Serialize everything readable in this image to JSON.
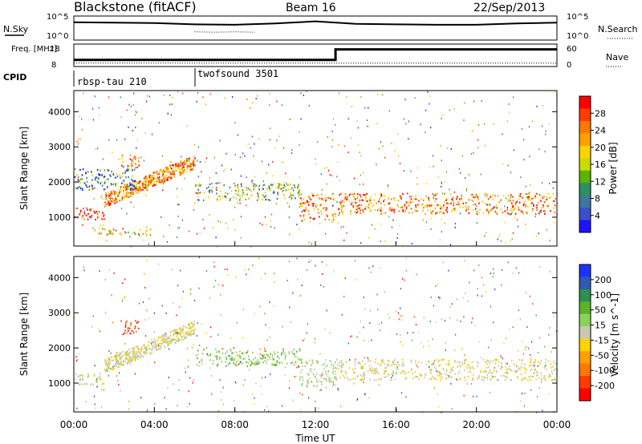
{
  "header": {
    "title": "Blackstone (fitACF)",
    "beam": "Beam 16",
    "date": "22/Sep/2013"
  },
  "chart_data": [
    {
      "type": "line",
      "panel": "noise",
      "ylabel_left": "N.Sky",
      "ylabel_right": "N.Search",
      "yticks_left": [
        "10^5",
        "10^0"
      ],
      "yticks_right": [
        "10^5",
        "10^0"
      ],
      "series": [
        {
          "name": "N.Sky",
          "x_hours": [
            0,
            2,
            4,
            6,
            8,
            10,
            12,
            14,
            16,
            18,
            20,
            22,
            24
          ],
          "values_log": [
            3.9,
            3.8,
            3.7,
            3.4,
            3.3,
            3.6,
            4.1,
            3.5,
            3.4,
            3.3,
            3.3,
            3.6,
            3.8
          ]
        },
        {
          "name": "N.Search",
          "x_hours": [
            6,
            7,
            8,
            9
          ],
          "values_log": [
            1.6,
            1.5,
            1.6,
            1.5
          ]
        }
      ]
    },
    {
      "type": "line",
      "panel": "frequency",
      "ylabel_left": "Freq. [MHz]",
      "ylabel_right": "Nave",
      "yticks_left": [
        "18",
        "8"
      ],
      "yticks_right": [
        "60",
        "0"
      ],
      "series": [
        {
          "name": "Freq",
          "x_hours": [
            0,
            13,
            13,
            24
          ],
          "values": [
            11,
            11,
            16.5,
            16.5
          ]
        },
        {
          "name": "Nave",
          "x_hours": [
            0,
            24
          ],
          "values": [
            8,
            8
          ]
        }
      ]
    },
    {
      "type": "table",
      "panel": "cpid",
      "label": "CPID",
      "segments": [
        {
          "name": "rbsp-tau 210",
          "start_hour": 0
        },
        {
          "name": "twofsound 3501",
          "start_hour": 6
        }
      ]
    },
    {
      "type": "heatmap",
      "panel": "power",
      "ylabel": "Slant Range [km]",
      "yticks": [
        1000,
        2000,
        3000,
        4000
      ],
      "ylim": [
        180,
        4600
      ],
      "colorbar_label": "Power [dB]",
      "colorbar_ticks": [
        28,
        24,
        20,
        16,
        12,
        8,
        4
      ],
      "colorbar_colors": [
        "#ff0000",
        "#ff3c00",
        "#ff7800",
        "#ffa000",
        "#ffd200",
        "#c8dc00",
        "#5ab400",
        "#2e9060",
        "#3c78a0",
        "#3c50c8",
        "#1e14ff"
      ],
      "bands": [
        {
          "start": 0.0,
          "end": 1.5,
          "range_low": 950,
          "range_high": 1300,
          "level": 28
        },
        {
          "start": 1.5,
          "end": 6.0,
          "range_low": 1300,
          "range_high": 2700,
          "level": 22
        },
        {
          "start": 0.0,
          "end": 3.0,
          "range_low": 1800,
          "range_high": 2400,
          "level": 10
        },
        {
          "start": 2.3,
          "end": 3.2,
          "range_low": 2400,
          "range_high": 2800,
          "level": 22
        },
        {
          "start": 1.0,
          "end": 3.8,
          "range_low": 500,
          "range_high": 700,
          "level": 18
        },
        {
          "start": 6.0,
          "end": 11.2,
          "range_low": 1500,
          "range_high": 2000,
          "level": 14
        },
        {
          "start": 11.2,
          "end": 13.0,
          "range_low": 900,
          "range_high": 1700,
          "level": 22
        },
        {
          "start": 13.0,
          "end": 24.0,
          "range_low": 1100,
          "range_high": 1700,
          "level": 22
        }
      ]
    },
    {
      "type": "heatmap",
      "panel": "velocity",
      "ylabel": "Slant Range [km]",
      "yticks": [
        1000,
        2000,
        3000,
        4000
      ],
      "ylim": [
        180,
        4600
      ],
      "colorbar_label": "Velocity [m s^-1]",
      "colorbar_ticks": [
        200,
        100,
        50,
        15,
        -15,
        -50,
        -100,
        -200
      ],
      "colorbar_colors": [
        "#1e32ff",
        "#2e5ab4",
        "#2e9050",
        "#5ab428",
        "#8cd25a",
        "#c8c8b4",
        "#ffd200",
        "#ffa000",
        "#ff7800",
        "#ff3c00",
        "#ff0000"
      ],
      "bands": [
        {
          "start": 0.0,
          "end": 1.5,
          "range_low": 950,
          "range_high": 1300,
          "level": -5
        },
        {
          "start": 1.5,
          "end": 6.0,
          "range_low": 1300,
          "range_high": 2700,
          "level": -5
        },
        {
          "start": 2.3,
          "end": 3.2,
          "range_low": 2400,
          "range_high": 2800,
          "level": -150
        },
        {
          "start": 6.0,
          "end": 11.2,
          "range_low": 1500,
          "range_high": 2000,
          "level": 40
        },
        {
          "start": 11.2,
          "end": 13.0,
          "range_low": 900,
          "range_high": 1700,
          "level": 20
        },
        {
          "start": 13.0,
          "end": 24.0,
          "range_low": 1100,
          "range_high": 1700,
          "level": -10
        }
      ]
    }
  ],
  "x_axis": {
    "label": "Time UT",
    "ticks": [
      "00:00",
      "04:00",
      "08:00",
      "12:00",
      "16:00",
      "20:00",
      "00:00"
    ]
  }
}
